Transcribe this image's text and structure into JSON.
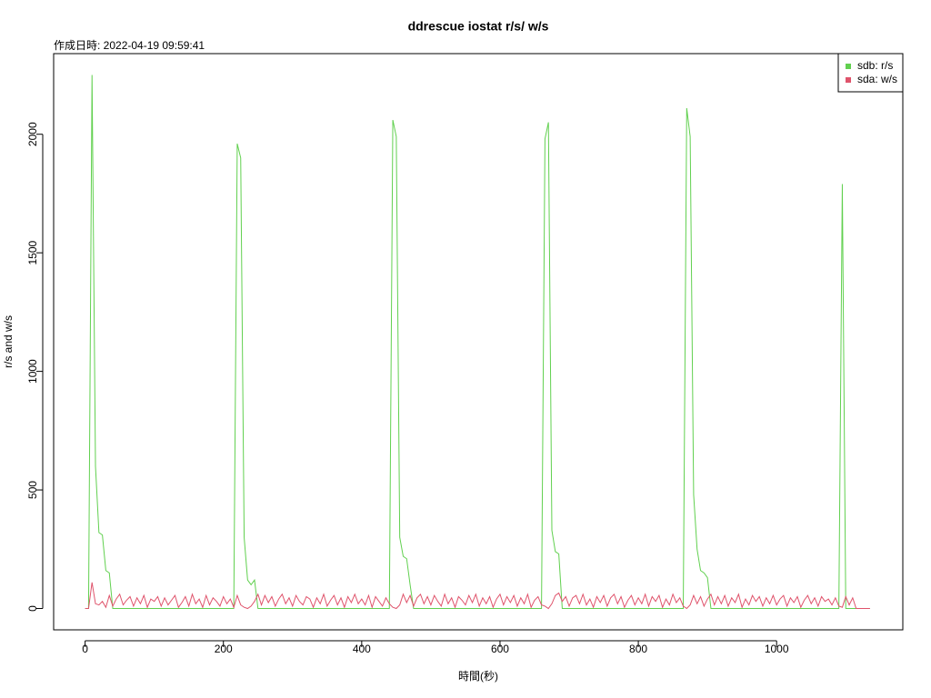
{
  "chart_data": {
    "type": "line",
    "title": "ddrescue iostat r/s/ w/s",
    "subtitle": "作成日時: 2022-04-19 09:59:41",
    "x_label": "時間(秒)",
    "y_label": "r/s and w/s",
    "legend_position": "topright",
    "xlim": [
      -45.5,
      1182.5
    ],
    "ylim": [
      -90,
      2340
    ],
    "xticks": [
      0,
      200,
      400,
      600,
      800,
      1000
    ],
    "yticks": [
      0,
      500,
      1000,
      1500,
      2000
    ],
    "x": [
      0,
      5,
      10,
      15,
      20,
      25,
      30,
      35,
      40,
      45,
      50,
      55,
      60,
      65,
      70,
      75,
      80,
      85,
      90,
      95,
      100,
      105,
      110,
      115,
      120,
      125,
      130,
      135,
      140,
      145,
      150,
      155,
      160,
      165,
      170,
      175,
      180,
      185,
      190,
      195,
      200,
      205,
      210,
      215,
      220,
      225,
      230,
      235,
      240,
      245,
      250,
      255,
      260,
      265,
      270,
      275,
      280,
      285,
      290,
      295,
      300,
      305,
      310,
      315,
      320,
      325,
      330,
      335,
      340,
      345,
      350,
      355,
      360,
      365,
      370,
      375,
      380,
      385,
      390,
      395,
      400,
      405,
      410,
      415,
      420,
      425,
      430,
      435,
      440,
      445,
      450,
      455,
      460,
      465,
      470,
      475,
      480,
      485,
      490,
      495,
      500,
      505,
      510,
      515,
      520,
      525,
      530,
      535,
      540,
      545,
      550,
      555,
      560,
      565,
      570,
      575,
      580,
      585,
      590,
      595,
      600,
      605,
      610,
      615,
      620,
      625,
      630,
      635,
      640,
      645,
      650,
      655,
      660,
      665,
      670,
      675,
      680,
      685,
      690,
      695,
      700,
      705,
      710,
      715,
      720,
      725,
      730,
      735,
      740,
      745,
      750,
      755,
      760,
      765,
      770,
      775,
      780,
      785,
      790,
      795,
      800,
      805,
      810,
      815,
      820,
      825,
      830,
      835,
      840,
      845,
      850,
      855,
      860,
      865,
      870,
      875,
      880,
      885,
      890,
      895,
      900,
      905,
      910,
      915,
      920,
      925,
      930,
      935,
      940,
      945,
      950,
      955,
      960,
      965,
      970,
      975,
      980,
      985,
      990,
      995,
      1000,
      1005,
      1010,
      1015,
      1020,
      1025,
      1030,
      1035,
      1040,
      1045,
      1050,
      1055,
      1060,
      1065,
      1070,
      1075,
      1080,
      1085,
      1090,
      1095,
      1100,
      1105,
      1110,
      1115,
      1120,
      1125,
      1130,
      1135
    ],
    "series": [
      {
        "name": "sdb: r/s",
        "color": "#61D04F",
        "values": [
          0,
          0,
          2250,
          600,
          320,
          310,
          160,
          150,
          0,
          0,
          0,
          0,
          0,
          0,
          0,
          0,
          0,
          0,
          0,
          0,
          0,
          0,
          0,
          0,
          0,
          0,
          0,
          0,
          0,
          0,
          0,
          0,
          0,
          0,
          0,
          0,
          0,
          0,
          0,
          0,
          0,
          0,
          0,
          0,
          1960,
          1900,
          300,
          120,
          100,
          120,
          0,
          0,
          0,
          0,
          0,
          0,
          0,
          0,
          0,
          0,
          0,
          0,
          0,
          0,
          0,
          0,
          0,
          0,
          0,
          0,
          0,
          0,
          0,
          0,
          0,
          0,
          0,
          0,
          0,
          0,
          0,
          0,
          0,
          0,
          0,
          0,
          0,
          0,
          0,
          2060,
          1990,
          300,
          220,
          210,
          100,
          0,
          0,
          0,
          0,
          0,
          0,
          0,
          0,
          0,
          0,
          0,
          0,
          0,
          0,
          0,
          0,
          0,
          0,
          0,
          0,
          0,
          0,
          0,
          0,
          0,
          0,
          0,
          0,
          0,
          0,
          0,
          0,
          0,
          0,
          0,
          0,
          0,
          0,
          1980,
          2050,
          330,
          240,
          230,
          0,
          0,
          0,
          0,
          0,
          0,
          0,
          0,
          0,
          0,
          0,
          0,
          0,
          0,
          0,
          0,
          0,
          0,
          0,
          0,
          0,
          0,
          0,
          0,
          0,
          0,
          0,
          0,
          0,
          0,
          0,
          0,
          0,
          0,
          0,
          0,
          2110,
          1990,
          480,
          250,
          160,
          150,
          130,
          0,
          0,
          0,
          0,
          0,
          0,
          0,
          0,
          0,
          0,
          0,
          0,
          0,
          0,
          0,
          0,
          0,
          0,
          0,
          0,
          0,
          0,
          0,
          0,
          0,
          0,
          0,
          0,
          0,
          0,
          0,
          0,
          0,
          0,
          0,
          0,
          0,
          0,
          1790,
          0,
          0,
          0,
          0,
          0,
          0,
          0,
          0
        ]
      },
      {
        "name": "sda: w/s",
        "color": "#DF536B",
        "values": [
          0,
          0,
          110,
          20,
          15,
          30,
          5,
          55,
          10,
          40,
          60,
          15,
          35,
          50,
          10,
          45,
          20,
          55,
          5,
          40,
          30,
          50,
          10,
          45,
          15,
          35,
          55,
          5,
          25,
          50,
          10,
          60,
          20,
          40,
          5,
          55,
          15,
          45,
          30,
          10,
          50,
          20,
          40,
          5,
          55,
          15,
          5,
          0,
          10,
          30,
          60,
          15,
          55,
          25,
          50,
          10,
          40,
          60,
          20,
          45,
          10,
          55,
          30,
          15,
          50,
          40,
          5,
          45,
          20,
          60,
          10,
          35,
          55,
          15,
          45,
          5,
          50,
          25,
          60,
          20,
          40,
          15,
          55,
          5,
          50,
          30,
          10,
          45,
          20,
          5,
          0,
          15,
          60,
          25,
          55,
          10,
          45,
          60,
          20,
          50,
          15,
          55,
          30,
          10,
          60,
          20,
          45,
          5,
          50,
          35,
          15,
          55,
          25,
          60,
          10,
          45,
          20,
          50,
          5,
          40,
          60,
          15,
          50,
          25,
          55,
          10,
          45,
          20,
          60,
          5,
          35,
          50,
          15,
          10,
          0,
          20,
          55,
          65,
          30,
          50,
          10,
          45,
          55,
          20,
          60,
          15,
          40,
          5,
          50,
          25,
          55,
          10,
          45,
          60,
          20,
          50,
          5,
          35,
          55,
          15,
          45,
          20,
          60,
          10,
          50,
          30,
          55,
          5,
          40,
          15,
          60,
          25,
          45,
          10,
          0,
          15,
          55,
          20,
          50,
          10,
          40,
          60,
          15,
          50,
          20,
          55,
          10,
          45,
          25,
          60,
          5,
          40,
          15,
          55,
          30,
          50,
          10,
          45,
          20,
          55,
          15,
          40,
          55,
          10,
          45,
          25,
          50,
          5,
          35,
          55,
          20,
          45,
          10,
          50,
          30,
          40,
          15,
          45,
          10,
          5,
          50,
          15,
          45,
          0,
          0,
          0,
          0,
          0
        ]
      }
    ]
  }
}
